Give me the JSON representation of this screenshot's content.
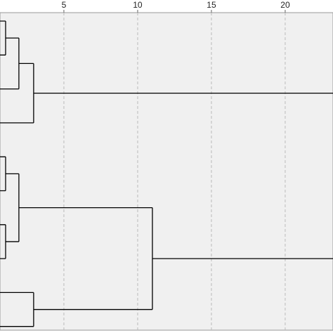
{
  "chart_data": {
    "type": "dendrogram",
    "xlim": [
      0.67,
      23.24
    ],
    "xticks": [
      5,
      10,
      15,
      20
    ],
    "grid": true,
    "color": "#000000",
    "clusters": [
      {
        "height": 2.95,
        "children": [
          {
            "height": 1.95,
            "children": [
              {
                "height": 1.05,
                "children": [
                  {
                    "height": 0
                  },
                  {
                    "height": 0
                  }
                ]
              },
              {
                "height": 0
              }
            ]
          },
          {
            "height": 0
          }
        ]
      },
      {
        "height": 11.0,
        "children": [
          {
            "height": 1.95,
            "children": [
              {
                "height": 1.05,
                "children": [
                  {
                    "height": 0
                  },
                  {
                    "height": 0
                  }
                ]
              },
              {
                "height": 1.05,
                "children": [
                  {
                    "height": 0
                  },
                  {
                    "height": 0
                  }
                ]
              }
            ]
          },
          {
            "height": 2.95,
            "children": [
              {
                "height": 0
              },
              {
                "height": 0
              }
            ]
          }
        ]
      }
    ]
  }
}
